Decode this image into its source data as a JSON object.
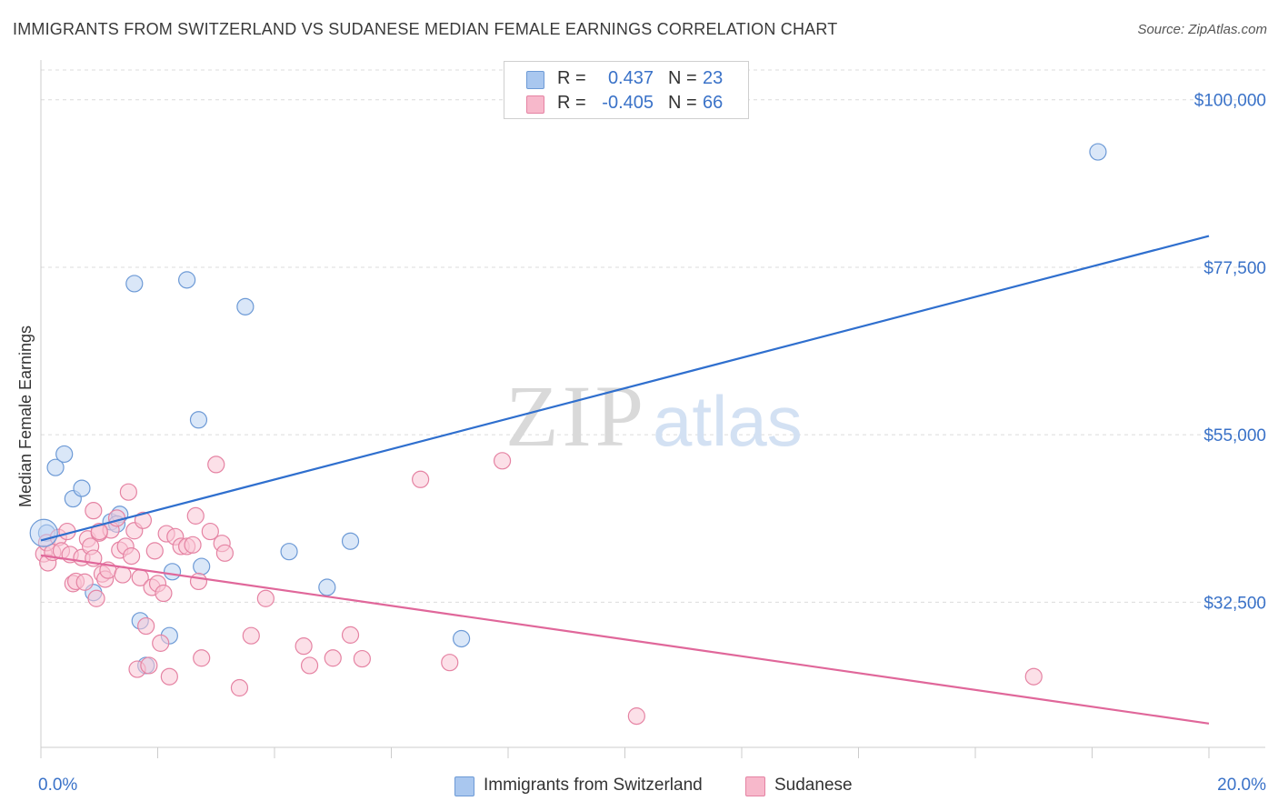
{
  "title": "IMMIGRANTS FROM SWITZERLAND VS SUDANESE MEDIAN FEMALE EARNINGS CORRELATION CHART",
  "source": "Source: ZipAtlas.com",
  "watermark": {
    "zip": "ZIP",
    "atlas": "atlas"
  },
  "legend": {
    "r_label": "R =",
    "n_label": "N =",
    "rows": [
      {
        "series": "Immigrants from Switzerland",
        "r": "0.437",
        "n": "23",
        "color": "#a9c7ef",
        "stroke": "#6d9ad6"
      },
      {
        "series": "Sudanese",
        "r": "-0.405",
        "n": "66",
        "color": "#f7b8cb",
        "stroke": "#e583a3"
      }
    ]
  },
  "chart_data": {
    "type": "scatter",
    "title": "IMMIGRANTS FROM SWITZERLAND VS SUDANESE MEDIAN FEMALE EARNINGS CORRELATION CHART",
    "xlabel": "",
    "ylabel": "Median Female Earnings",
    "xlim": [
      0,
      20
    ],
    "ylim": [
      13000,
      104000
    ],
    "x_tick_labels": [
      "0.0%",
      "20.0%"
    ],
    "y_ticks": [
      32500,
      55000,
      77500,
      100000
    ],
    "y_tick_labels": [
      "$32,500",
      "$55,000",
      "$77,500",
      "$100,000"
    ],
    "grid": true,
    "series": [
      {
        "name": "Immigrants from Switzerland",
        "color": "#6d9ad6",
        "fill": "#bcd4f3",
        "line_color": "#2f6fce",
        "trend": {
          "x": [
            0,
            20
          ],
          "y": [
            40800,
            81700
          ]
        },
        "points": [
          [
            0.1,
            41800
          ],
          [
            0.25,
            50600
          ],
          [
            0.4,
            52400
          ],
          [
            0.55,
            46400
          ],
          [
            0.7,
            47800
          ],
          [
            0.9,
            33800
          ],
          [
            1.2,
            43300
          ],
          [
            1.35,
            44300
          ],
          [
            1.6,
            75300
          ],
          [
            1.7,
            30000
          ],
          [
            1.8,
            24000
          ],
          [
            2.2,
            28000
          ],
          [
            2.25,
            36600
          ],
          [
            2.5,
            75800
          ],
          [
            2.7,
            57000
          ],
          [
            2.75,
            37300
          ],
          [
            3.5,
            72200
          ],
          [
            4.25,
            39300
          ],
          [
            4.9,
            34500
          ],
          [
            5.3,
            40700
          ],
          [
            7.2,
            27600
          ],
          [
            18.1,
            93000
          ],
          [
            1.3,
            43000
          ]
        ]
      },
      {
        "name": "Sudanese",
        "color": "#e583a3",
        "fill": "#f9c6d5",
        "line_color": "#e0679a",
        "trend": {
          "x": [
            0,
            20
          ],
          "y": [
            38800,
            16200
          ]
        },
        "points": [
          [
            0.05,
            39000
          ],
          [
            0.1,
            40500
          ],
          [
            0.12,
            37800
          ],
          [
            0.2,
            39200
          ],
          [
            0.3,
            41200
          ],
          [
            0.35,
            39400
          ],
          [
            0.45,
            42000
          ],
          [
            0.5,
            38900
          ],
          [
            0.55,
            35000
          ],
          [
            0.6,
            35300
          ],
          [
            0.7,
            38500
          ],
          [
            0.75,
            35200
          ],
          [
            0.8,
            41000
          ],
          [
            0.85,
            40000
          ],
          [
            0.9,
            44800
          ],
          [
            0.95,
            33000
          ],
          [
            1.0,
            41800
          ],
          [
            1.05,
            36300
          ],
          [
            1.1,
            35600
          ],
          [
            1.15,
            36800
          ],
          [
            1.2,
            42200
          ],
          [
            1.3,
            43800
          ],
          [
            1.35,
            39500
          ],
          [
            1.4,
            36200
          ],
          [
            1.45,
            40000
          ],
          [
            1.5,
            47300
          ],
          [
            1.55,
            38700
          ],
          [
            1.6,
            42100
          ],
          [
            1.65,
            23500
          ],
          [
            1.7,
            35800
          ],
          [
            1.75,
            43500
          ],
          [
            1.8,
            29300
          ],
          [
            1.85,
            24000
          ],
          [
            1.9,
            34500
          ],
          [
            1.95,
            39400
          ],
          [
            2.0,
            35000
          ],
          [
            2.05,
            27000
          ],
          [
            2.1,
            33700
          ],
          [
            2.15,
            41700
          ],
          [
            2.2,
            22500
          ],
          [
            2.3,
            41300
          ],
          [
            2.4,
            40000
          ],
          [
            2.5,
            40000
          ],
          [
            2.6,
            40200
          ],
          [
            2.65,
            44100
          ],
          [
            2.7,
            35300
          ],
          [
            2.75,
            25000
          ],
          [
            2.9,
            42000
          ],
          [
            3.0,
            51000
          ],
          [
            3.1,
            40400
          ],
          [
            3.15,
            39100
          ],
          [
            3.4,
            21000
          ],
          [
            3.6,
            28000
          ],
          [
            3.85,
            33000
          ],
          [
            4.5,
            26600
          ],
          [
            4.6,
            24000
          ],
          [
            5.0,
            25000
          ],
          [
            5.3,
            28100
          ],
          [
            5.5,
            24900
          ],
          [
            6.5,
            49000
          ],
          [
            7.0,
            24400
          ],
          [
            7.9,
            51500
          ],
          [
            10.2,
            17200
          ],
          [
            17.0,
            22500
          ],
          [
            0.9,
            38400
          ],
          [
            1.0,
            42000
          ]
        ]
      }
    ]
  }
}
